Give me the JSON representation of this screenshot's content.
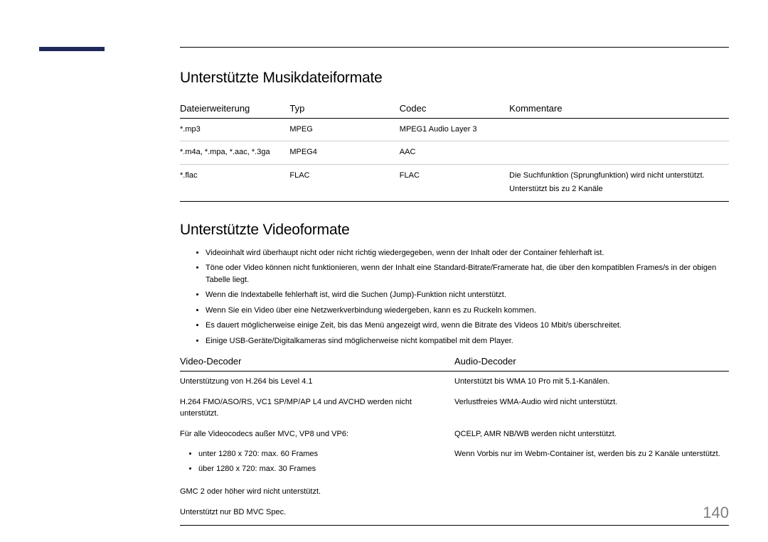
{
  "heading_music": "Unterstützte Musikdateiformate",
  "music_table": {
    "columns": [
      "Dateierweiterung",
      "Typ",
      "Codec",
      "Kommentare"
    ],
    "rows": [
      {
        "ext": "*.mp3",
        "type": "MPEG",
        "codec": "MPEG1 Audio Layer 3",
        "comment": ""
      },
      {
        "ext": "*.m4a, *.mpa, *.aac, *.3ga",
        "type": "MPEG4",
        "codec": "AAC",
        "comment": ""
      },
      {
        "ext": "*.flac",
        "type": "FLAC",
        "codec": "FLAC",
        "comment_lines": [
          "Die Suchfunktion (Sprungfunktion) wird nicht unterstützt.",
          "Unterstützt bis zu 2 Kanäle"
        ]
      }
    ]
  },
  "heading_video": "Unterstützte Videoformate",
  "video_notes": [
    "Videoinhalt wird überhaupt nicht oder nicht richtig wiedergegeben, wenn der Inhalt oder der Container fehlerhaft ist.",
    "Töne oder Video können nicht funktionieren, wenn der Inhalt eine Standard-Bitrate/Framerate hat, die über den kompatiblen Frames/s in der obigen Tabelle liegt.",
    "Wenn die Indextabelle fehlerhaft ist, wird die Suchen (Jump)-Funktion nicht unterstützt.",
    "Wenn Sie ein Video über eine Netzwerkverbindung wiedergeben, kann es zu Ruckeln kommen.",
    "Es dauert möglicherweise einige Zeit, bis das Menü angezeigt wird, wenn die Bitrate des Videos 10 Mbit/s überschreitet.",
    "Einige USB-Geräte/Digitalkameras sind möglicherweise nicht kompatibel mit dem Player."
  ],
  "decoder_columns": [
    "Video-Decoder",
    "Audio-Decoder"
  ],
  "video_decoder": {
    "line1": "Unterstützung von H.264 bis Level 4.1",
    "line2": "H.264 FMO/ASO/RS, VC1 SP/MP/AP L4 und AVCHD werden nicht unterstützt.",
    "line3": "Für alle Videocodecs außer MVC, VP8 und VP6:",
    "sub1": "unter 1280 x 720: max. 60 Frames",
    "sub2": "über 1280 x 720: max. 30 Frames",
    "line4": "GMC 2 oder höher wird nicht unterstützt.",
    "line5": "Unterstützt nur BD MVC Spec."
  },
  "audio_decoder": {
    "line1": "Unterstützt bis WMA 10 Pro mit 5.1-Kanälen.",
    "line2": "Verlustfreies WMA-Audio wird nicht unterstützt.",
    "line3": "QCELP, AMR NB/WB werden nicht unterstützt.",
    "line4": "Wenn Vorbis nur im Webm-Container ist, werden bis zu 2 Kanäle unterstützt."
  },
  "page_number": "140",
  "colors": {
    "accent": "#1f2a5a",
    "text": "#000000",
    "pagenum": "#808080",
    "divider": "#cccccc"
  }
}
